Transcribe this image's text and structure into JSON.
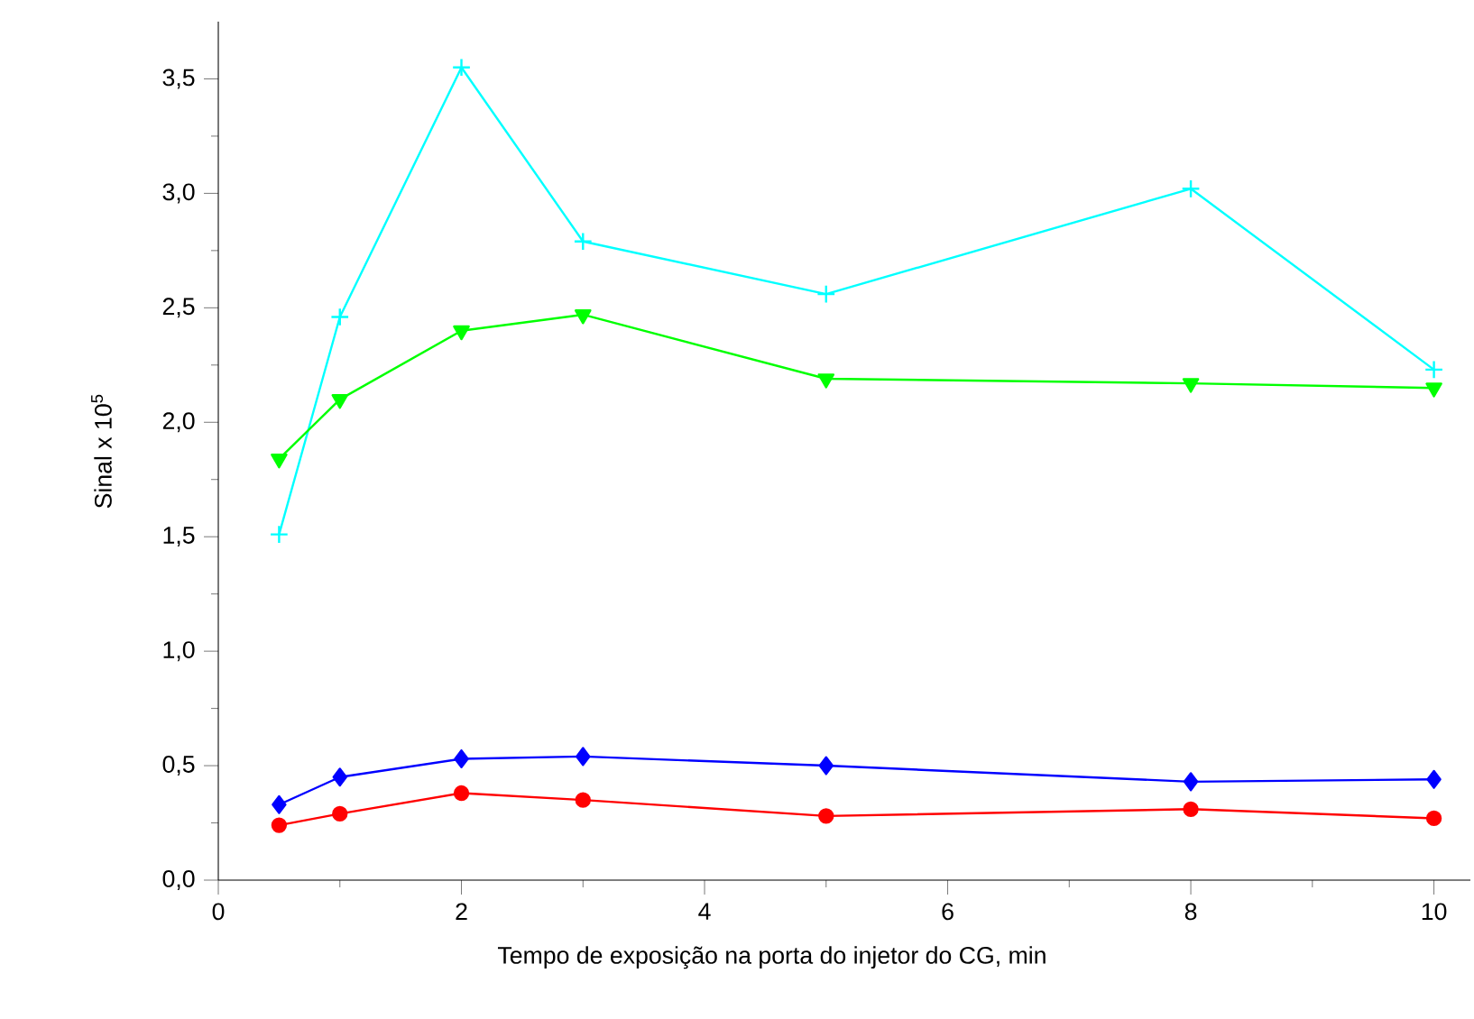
{
  "chart_data": {
    "type": "line",
    "xlabel": "Tempo de exposição na porta do injetor do CG, min",
    "ylabel": "Sinal x 10$^{5}$",
    "x": [
      0.5,
      1,
      2,
      3,
      5,
      8,
      10
    ],
    "series": [
      {
        "color": "#00ffff",
        "marker": "cross",
        "values": [
          1.51,
          2.46,
          3.55,
          2.79,
          2.56,
          3.02,
          2.23
        ]
      },
      {
        "color": "#00ff00",
        "marker": "triangle",
        "values": [
          1.84,
          2.1,
          2.4,
          2.47,
          2.19,
          2.17,
          2.15
        ]
      },
      {
        "color": "#0000ff",
        "marker": "diamond",
        "values": [
          0.33,
          0.45,
          0.53,
          0.54,
          0.5,
          0.43,
          0.44
        ]
      },
      {
        "color": "#ff0000",
        "marker": "circle",
        "values": [
          0.24,
          0.29,
          0.38,
          0.35,
          0.28,
          0.31,
          0.27
        ]
      }
    ],
    "xlim": [
      0,
      10.3
    ],
    "ylim": [
      0,
      3.75
    ],
    "xticks": [
      0,
      2,
      4,
      6,
      8,
      10
    ],
    "yticks": [
      {
        "value": 0,
        "label": "0,0"
      },
      {
        "value": 0.5,
        "label": "0,5"
      },
      {
        "value": 1,
        "label": "1,0"
      },
      {
        "value": 1.5,
        "label": "1,5"
      },
      {
        "value": 2,
        "label": "2,0"
      },
      {
        "value": 2.5,
        "label": "2,5"
      },
      {
        "value": 3,
        "label": "3,0"
      },
      {
        "value": 3.5,
        "label": "3,5"
      }
    ],
    "line_style": "solid"
  }
}
